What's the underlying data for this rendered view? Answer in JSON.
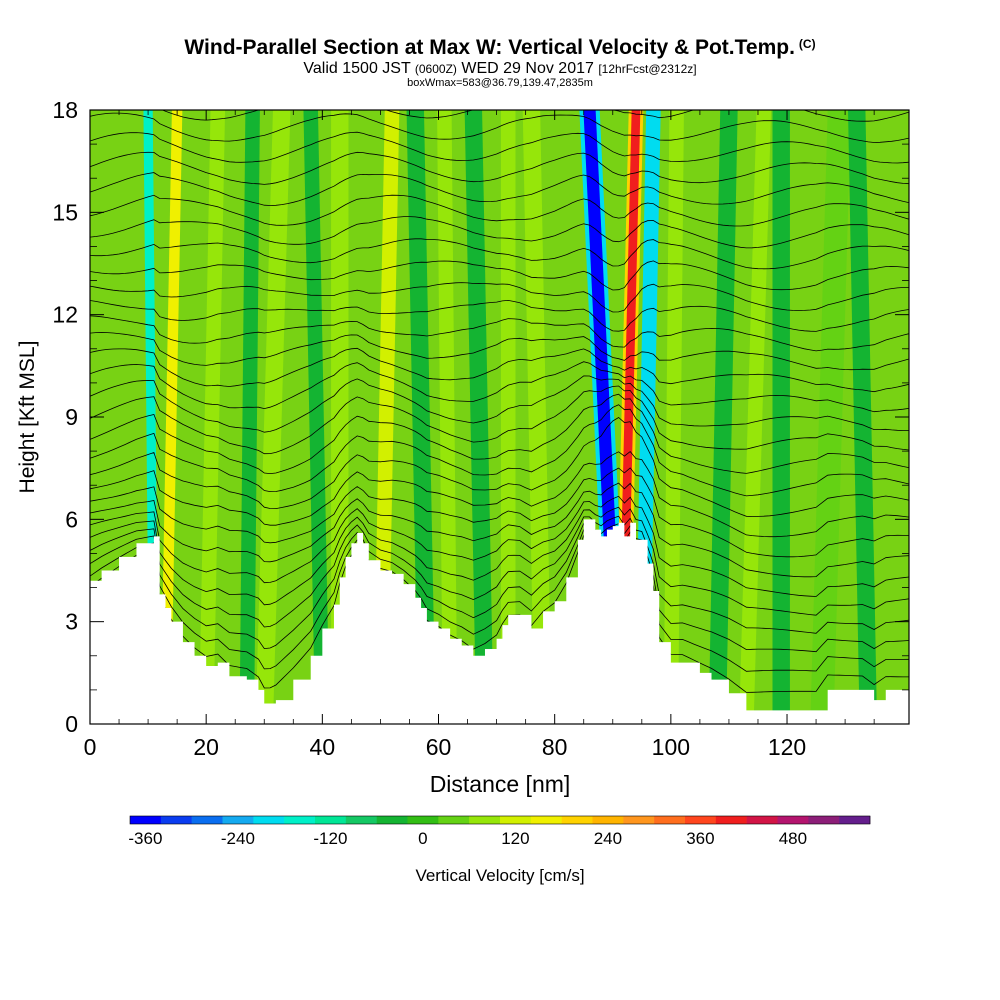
{
  "title": {
    "main": "Wind-Parallel Section at Max W: Vertical Velocity & Pot.Temp.",
    "copyright": "(C)",
    "valid_prefix": "Valid 1500 JST",
    "valid_utc": "(0600Z)",
    "valid_date": "WED 29 Nov 2017",
    "forecast": "[12hrFcst@2312z]",
    "box_info": "boxWmax=583@36.79,139.47,2835m"
  },
  "colorbar": {
    "label": "Vertical Velocity [cm/s]",
    "tick_labels": [
      "-360",
      "-240",
      "-120",
      "0",
      "120",
      "240",
      "360",
      "480"
    ],
    "colors": [
      "#0000ff",
      "#0a3cf0",
      "#0a6ef0",
      "#14aaf0",
      "#00dcf0",
      "#00f0c8",
      "#00e696",
      "#14c864",
      "#14b432",
      "#32be14",
      "#64d214",
      "#96e60a",
      "#d2f000",
      "#f0f000",
      "#ffd200",
      "#ffb400",
      "#ff961e",
      "#ff6e1e",
      "#ff461e",
      "#f01e1e",
      "#d21446",
      "#b4146e",
      "#8c1e78",
      "#641e8c"
    ]
  },
  "chart_data": {
    "type": "heatmap",
    "title": "Wind-Parallel Section at Max W: Vertical Velocity & Pot.Temp.",
    "xlabel": "Distance [nm]",
    "ylabel": "Height [Kft MSL]",
    "xlim": [
      0,
      141
    ],
    "ylim": [
      0,
      18
    ],
    "x_ticks": [
      "0",
      "20",
      "40",
      "60",
      "80",
      "100",
      "120"
    ],
    "y_ticks": [
      "0",
      "3",
      "6",
      "9",
      "12",
      "15",
      "18"
    ],
    "background_color": "#78d214",
    "terrain_profile": {
      "x": [
        0,
        2,
        5,
        8,
        11,
        12,
        13,
        14,
        16,
        18,
        20,
        22,
        24,
        27,
        29,
        30,
        31,
        32,
        35,
        38,
        40,
        42,
        43,
        44,
        45,
        46,
        47,
        48,
        50,
        52,
        54,
        56,
        57,
        58,
        60,
        62,
        64,
        66,
        68,
        70,
        71,
        72,
        74,
        76,
        78,
        80,
        82,
        84,
        85,
        86,
        87,
        88,
        89,
        90,
        91,
        92,
        93,
        94,
        95,
        96,
        97,
        98,
        100,
        102,
        105,
        107,
        110,
        113,
        115,
        120,
        125,
        127,
        130,
        133,
        135,
        137,
        141
      ],
      "y": [
        4.2,
        4.5,
        4.9,
        5.3,
        5.5,
        3.8,
        3.4,
        3.0,
        2.4,
        2.0,
        1.7,
        1.8,
        1.4,
        1.3,
        1.0,
        0.6,
        0.6,
        0.7,
        1.3,
        2.0,
        2.8,
        3.5,
        4.3,
        4.9,
        5.3,
        5.6,
        5.3,
        4.8,
        4.5,
        4.4,
        4.1,
        3.7,
        3.4,
        3.0,
        2.8,
        2.5,
        2.3,
        2.0,
        2.2,
        2.5,
        2.9,
        3.2,
        3.2,
        2.8,
        3.3,
        3.6,
        4.3,
        5.4,
        6.0,
        6.0,
        5.7,
        5.5,
        5.7,
        5.8,
        5.9,
        5.5,
        5.9,
        5.4,
        5.4,
        4.7,
        3.9,
        2.4,
        1.8,
        1.8,
        1.5,
        1.3,
        0.9,
        0.4,
        0.4,
        0.4,
        0.4,
        1.0,
        1.0,
        1.0,
        0.7,
        1.0,
        1.0
      ]
    },
    "vertical_velocity_features": [
      {
        "x_center": 11.5,
        "x_base": 11,
        "x_top": 10,
        "width": 1.6,
        "w_cm_s": -140
      },
      {
        "x_center": 14,
        "x_base": 13,
        "x_top": 15,
        "width": 1.8,
        "w_cm_s": 180
      },
      {
        "x_center": 21,
        "x_base": 20,
        "x_top": 22,
        "width": 2.5,
        "w_cm_s": 80
      },
      {
        "x_center": 28,
        "x_base": 27,
        "x_top": 28,
        "width": 2.5,
        "w_cm_s": -40
      },
      {
        "x_center": 31,
        "x_base": 30,
        "x_top": 33,
        "width": 3.0,
        "w_cm_s": 80
      },
      {
        "x_center": 39,
        "x_base": 40,
        "x_top": 38,
        "width": 2.5,
        "w_cm_s": -40
      },
      {
        "x_center": 43,
        "x_base": 43,
        "x_top": 43,
        "width": 3.0,
        "w_cm_s": 80
      },
      {
        "x_center": 50,
        "x_base": 50,
        "x_top": 52,
        "width": 2.5,
        "w_cm_s": 130
      },
      {
        "x_center": 58,
        "x_base": 58,
        "x_top": 56,
        "width": 3.0,
        "w_cm_s": -40
      },
      {
        "x_center": 62,
        "x_base": 62,
        "x_top": 61,
        "width": 2.5,
        "w_cm_s": 80
      },
      {
        "x_center": 68,
        "x_base": 68,
        "x_top": 66,
        "width": 3.0,
        "w_cm_s": -40
      },
      {
        "x_center": 72,
        "x_base": 72,
        "x_top": 72,
        "width": 2.5,
        "w_cm_s": 80
      },
      {
        "x_center": 78,
        "x_base": 78,
        "x_top": 76,
        "width": 3.0,
        "w_cm_s": 90
      },
      {
        "x_center": 88.5,
        "x_base": 91,
        "x_top": 86,
        "width": 3.5,
        "w_cm_s": -360
      },
      {
        "x_center": 93,
        "x_base": 91.5,
        "x_top": 94,
        "width": 2.5,
        "w_cm_s": 420
      },
      {
        "x_center": 97,
        "x_base": 95,
        "x_top": 97,
        "width": 2.5,
        "w_cm_s": -180
      },
      {
        "x_center": 100,
        "x_base": 100,
        "x_top": 101,
        "width": 2.5,
        "w_cm_s": 80
      },
      {
        "x_center": 108,
        "x_base": 108,
        "x_top": 110,
        "width": 3.0,
        "w_cm_s": -40
      },
      {
        "x_center": 113,
        "x_base": 113,
        "x_top": 116,
        "width": 2.5,
        "w_cm_s": 80
      },
      {
        "x_center": 119,
        "x_base": 119,
        "x_top": 119,
        "width": 3.0,
        "w_cm_s": -40
      },
      {
        "x_center": 127,
        "x_base": 126,
        "x_top": 129,
        "width": 4.0,
        "w_cm_s": 60
      },
      {
        "x_center": 133,
        "x_base": 134,
        "x_top": 132,
        "width": 3.0,
        "w_cm_s": -40
      }
    ],
    "theta_contours": {
      "count": 30,
      "label_font": "tiny numeric labels along isentropes"
    }
  }
}
